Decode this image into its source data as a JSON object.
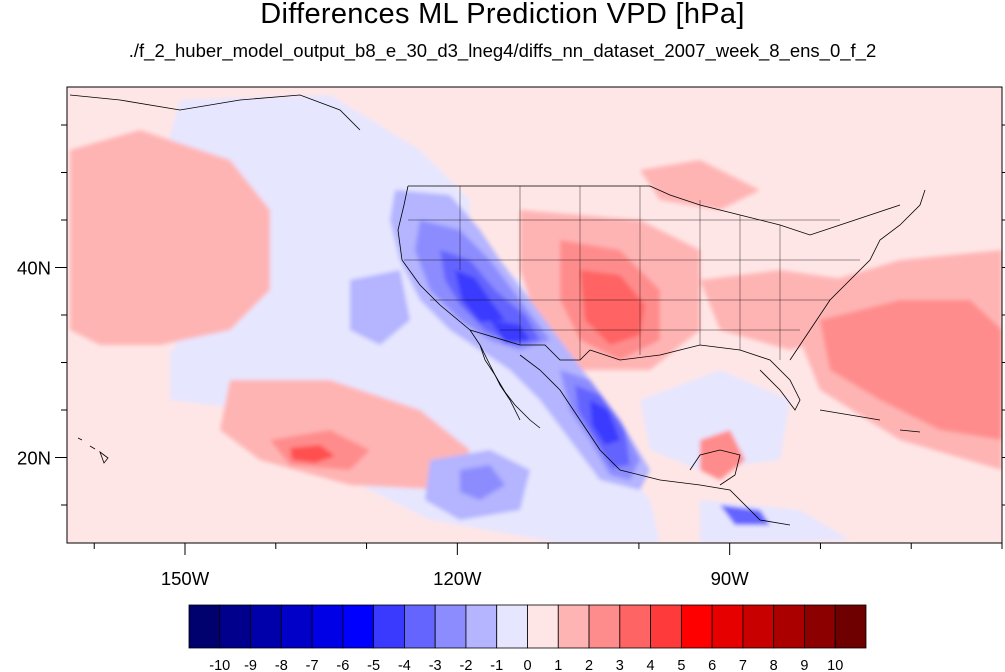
{
  "title": "Differences ML Prediction VPD [hPa]",
  "subtitle": "./f_2_huber_model_output_b8_e_30_d3_lneg4/diffs_nn_dataset_2007_week_8_ens_0_f_2",
  "map": {
    "lon_range": [
      -163,
      -60
    ],
    "lat_range": [
      11,
      59
    ],
    "x_ticks": [
      {
        "lon": -150,
        "label": "150W"
      },
      {
        "lon": -120,
        "label": "120W"
      },
      {
        "lon": -90,
        "label": "90W"
      }
    ],
    "y_ticks": [
      {
        "lat": 40,
        "label": "40N"
      },
      {
        "lat": 20,
        "label": "20N"
      }
    ]
  },
  "colorbar": {
    "levels": [
      "-10",
      "-9",
      "-8",
      "-7",
      "-6",
      "-5",
      "-4",
      "-3",
      "-2",
      "-1",
      "0",
      "1",
      "2",
      "3",
      "4",
      "5",
      "6",
      "7",
      "8",
      "9",
      "10"
    ],
    "colors": [
      "#00006e",
      "#00008c",
      "#0000aa",
      "#0000c8",
      "#0000e6",
      "#0000ff",
      "#3a3aff",
      "#6464ff",
      "#8c8cff",
      "#b4b4ff",
      "#e6e6ff",
      "#ffe6e6",
      "#ffb4b4",
      "#ff8c8c",
      "#ff6464",
      "#ff3a3a",
      "#ff0000",
      "#e60000",
      "#c80000",
      "#aa0000",
      "#8c0000",
      "#6e0000"
    ]
  }
}
